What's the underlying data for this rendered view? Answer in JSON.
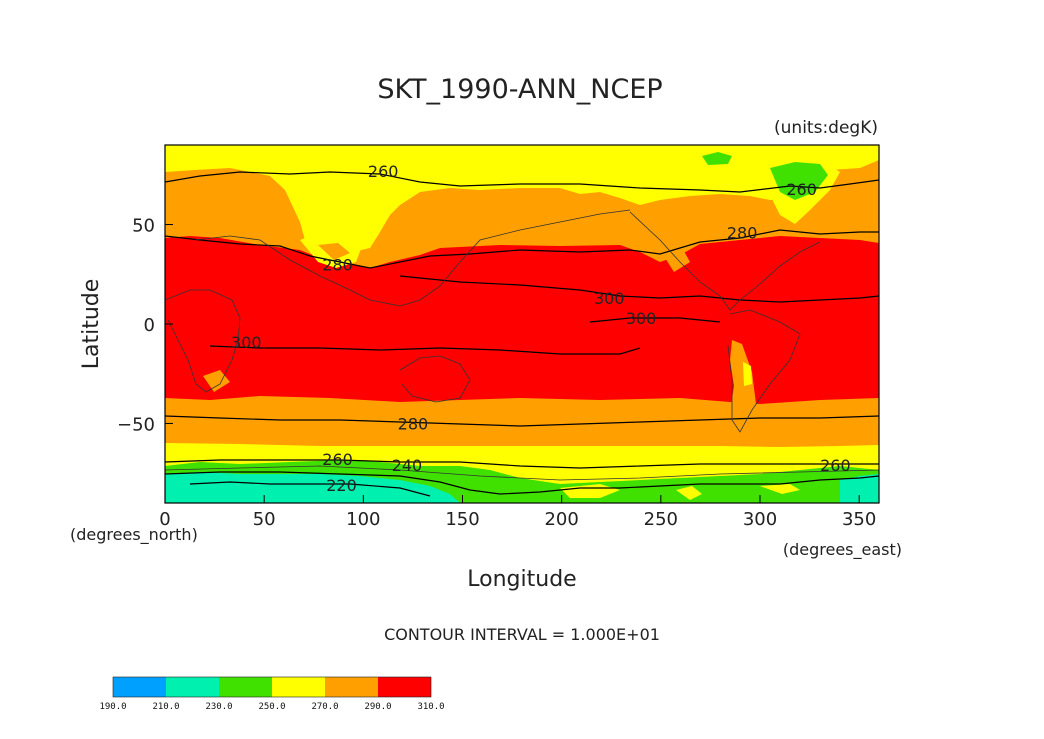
{
  "title": "SKT_1990-ANN_NCEP",
  "units_note": "(units:degK)",
  "contour_interval_text": "CONTOUR INTERVAL = 1.000E+01",
  "map": {
    "xlabel": "Longitude",
    "ylabel": "Latitude",
    "x_unit": "(degrees_east)",
    "y_unit": "(degrees_north)",
    "xlim": [
      0,
      360
    ],
    "ylim": [
      -90,
      90
    ],
    "x_ticks": [
      0,
      50,
      100,
      150,
      200,
      250,
      300,
      350
    ],
    "y_ticks": [
      50,
      0,
      -50
    ],
    "y_tick_labels": [
      "50",
      "0",
      "−50"
    ],
    "contour_labels": [
      {
        "text": "260",
        "lon": 110,
        "lat": 77
      },
      {
        "text": "260",
        "lon": 321,
        "lat": 68
      },
      {
        "text": "280",
        "lon": 291,
        "lat": 46
      },
      {
        "text": "280",
        "lon": 87,
        "lat": 30
      },
      {
        "text": "300",
        "lon": 224,
        "lat": 13
      },
      {
        "text": "300",
        "lon": 240,
        "lat": 3
      },
      {
        "text": "300",
        "lon": 41,
        "lat": -9
      },
      {
        "text": "280",
        "lon": 125,
        "lat": -50
      },
      {
        "text": "260",
        "lon": 87,
        "lat": -68
      },
      {
        "text": "240",
        "lon": 122,
        "lat": -71
      },
      {
        "text": "220",
        "lon": 89,
        "lat": -81
      },
      {
        "text": "260",
        "lon": 338,
        "lat": -71
      }
    ]
  },
  "colorbar": {
    "levels": [
      "190.0",
      "210.0",
      "230.0",
      "250.0",
      "270.0",
      "290.0",
      "310.0"
    ],
    "colors": [
      "#00a0ff",
      "#00f0b0",
      "#40e000",
      "#ffff00",
      "#ffa000",
      "#ff0000"
    ]
  },
  "field_colors": {
    "band_190_210": "#00a0ff",
    "band_210_230": "#00f0b0",
    "band_230_250": "#40e000",
    "band_250_270": "#ffff00",
    "band_270_290": "#ffa000",
    "band_290_310": "#ff0000"
  }
}
